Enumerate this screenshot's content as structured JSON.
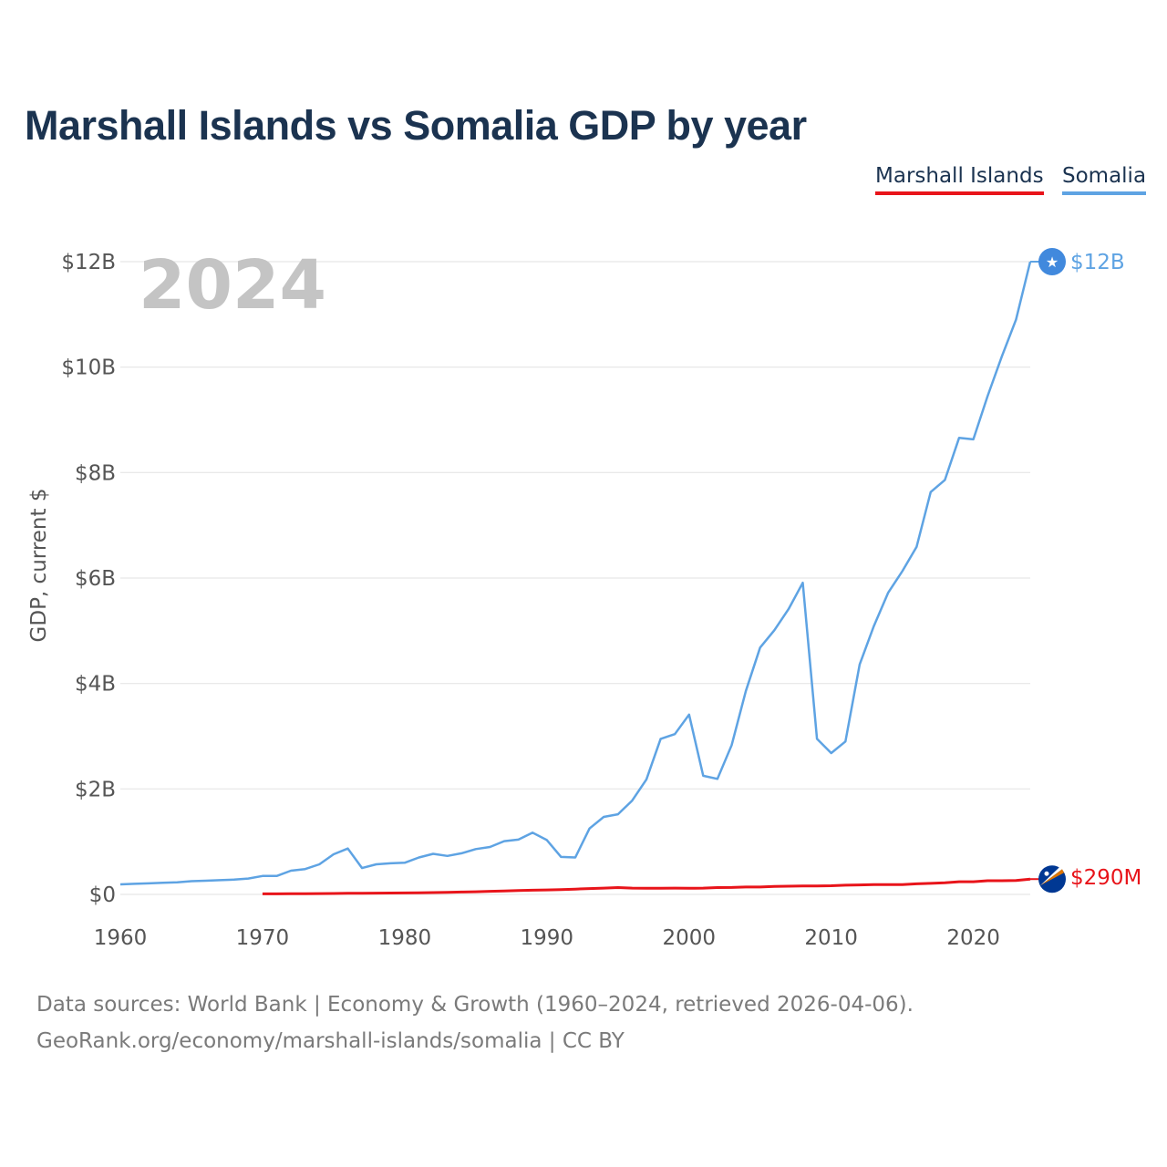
{
  "chart_data": {
    "type": "line",
    "title": "Marshall Islands vs Somalia GDP by year",
    "xlabel": "",
    "ylabel": "GDP, current $",
    "xlim": [
      1960,
      2024
    ],
    "ylim": [
      0,
      12
    ],
    "x_ticks": [
      1960,
      1970,
      1980,
      1990,
      2000,
      2010,
      2020
    ],
    "x_tick_labels": [
      "1960",
      "1970",
      "1980",
      "1990",
      "2000",
      "2010",
      "2020"
    ],
    "y_ticks": [
      0,
      2,
      4,
      6,
      8,
      10,
      12
    ],
    "y_tick_labels": [
      "$0",
      "$2B",
      "$4B",
      "$6B",
      "$8B",
      "$10B",
      "$12B"
    ],
    "year_label": "2024",
    "units": "billions of current US dollars",
    "series": [
      {
        "name": "Marshall Islands",
        "color": "#e8141a",
        "end_label": "$290M",
        "flag_icon": "marshall-islands-flag-icon",
        "x": [
          1970,
          1971,
          1972,
          1973,
          1974,
          1975,
          1976,
          1977,
          1978,
          1979,
          1980,
          1981,
          1982,
          1983,
          1984,
          1985,
          1986,
          1987,
          1988,
          1989,
          1990,
          1991,
          1992,
          1993,
          1994,
          1995,
          1996,
          1997,
          1998,
          1999,
          2000,
          2001,
          2002,
          2003,
          2004,
          2005,
          2006,
          2007,
          2008,
          2009,
          2010,
          2011,
          2012,
          2013,
          2014,
          2015,
          2016,
          2017,
          2018,
          2019,
          2020,
          2021,
          2022,
          2023,
          2024
        ],
        "values": [
          0.01,
          0.01,
          0.012,
          0.014,
          0.016,
          0.018,
          0.02,
          0.022,
          0.024,
          0.026,
          0.028,
          0.031,
          0.035,
          0.04,
          0.045,
          0.05,
          0.058,
          0.066,
          0.074,
          0.08,
          0.085,
          0.09,
          0.1,
          0.11,
          0.12,
          0.13,
          0.12,
          0.115,
          0.118,
          0.12,
          0.115,
          0.12,
          0.13,
          0.132,
          0.14,
          0.14,
          0.15,
          0.155,
          0.16,
          0.16,
          0.165,
          0.175,
          0.18,
          0.185,
          0.185,
          0.185,
          0.2,
          0.21,
          0.22,
          0.24,
          0.24,
          0.26,
          0.26,
          0.265,
          0.29
        ]
      },
      {
        "name": "Somalia",
        "color": "#5ea3e3",
        "end_label": "$12B",
        "flag_icon": "somalia-flag-icon",
        "x": [
          1960,
          1961,
          1962,
          1963,
          1964,
          1965,
          1966,
          1967,
          1968,
          1969,
          1970,
          1971,
          1972,
          1973,
          1974,
          1975,
          1976,
          1977,
          1978,
          1979,
          1980,
          1981,
          1982,
          1983,
          1984,
          1985,
          1986,
          1987,
          1988,
          1989,
          1990,
          1991,
          1992,
          1993,
          1994,
          1995,
          1996,
          1997,
          1998,
          1999,
          2000,
          2001,
          2002,
          2003,
          2004,
          2005,
          2006,
          2007,
          2008,
          2009,
          2010,
          2011,
          2012,
          2013,
          2014,
          2015,
          2016,
          2017,
          2018,
          2019,
          2020,
          2021,
          2022,
          2023,
          2024
        ],
        "values": [
          0.19,
          0.2,
          0.21,
          0.22,
          0.23,
          0.25,
          0.26,
          0.27,
          0.28,
          0.3,
          0.35,
          0.35,
          0.45,
          0.48,
          0.57,
          0.76,
          0.87,
          0.5,
          0.57,
          0.59,
          0.6,
          0.7,
          0.77,
          0.73,
          0.78,
          0.86,
          0.9,
          1.01,
          1.04,
          1.17,
          1.03,
          0.71,
          0.7,
          1.25,
          1.47,
          1.52,
          1.78,
          2.18,
          2.95,
          3.04,
          3.41,
          2.25,
          2.19,
          2.83,
          3.86,
          4.68,
          5.01,
          5.41,
          5.91,
          2.95,
          2.68,
          2.9,
          4.36,
          5.09,
          5.72,
          6.13,
          6.59,
          7.63,
          7.86,
          8.66,
          8.63,
          9.45,
          10.2,
          10.9,
          12.0
        ]
      }
    ]
  },
  "legend": [
    {
      "label": "Marshall Islands",
      "color": "#e8141a"
    },
    {
      "label": "Somalia",
      "color": "#5ea3e3"
    }
  ],
  "source": {
    "line1": "Data sources: World Bank | Economy & Growth (1960–2024, retrieved 2026-04-06).",
    "line2": "GeoRank.org/economy/marshall-islands/somalia | CC BY"
  },
  "colors": {
    "title": "#1b3350",
    "grid": "#e6e6e6",
    "axis_text": "#555555",
    "year_label": "#c4c4c4"
  }
}
